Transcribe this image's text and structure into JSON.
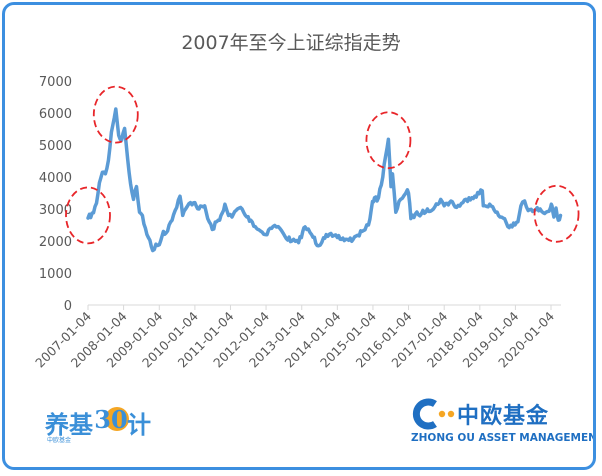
{
  "chart_data": {
    "type": "line",
    "title": "2007年至今上证综指走势",
    "xlabel": "",
    "ylabel": "",
    "ylim": [
      0,
      7000
    ],
    "yticks": [
      0,
      1000,
      2000,
      3000,
      4000,
      5000,
      6000,
      7000
    ],
    "x_tick_labels": [
      "2007-01-04",
      "2008-01-04",
      "2009-01-04",
      "2010-01-04",
      "2011-01-04",
      "2012-01-04",
      "2013-01-04",
      "2014-01-04",
      "2015-01-04",
      "2016-01-04",
      "2017-01-04",
      "2018-01-04",
      "2019-01-04",
      "2020-01-04"
    ],
    "grid": false,
    "legend": "none",
    "line_color": "#5b9bd5",
    "annotation_color": "#e8262a",
    "series": [
      {
        "x": [
          "2007-01-04",
          "2007-03-01",
          "2007-04-01",
          "2007-05-01",
          "2007-06-01",
          "2007-07-01",
          "2007-08-01",
          "2007-09-01",
          "2007-10-16",
          "2007-11-15",
          "2007-12-15",
          "2008-01-14",
          "2008-02-15",
          "2008-03-15",
          "2008-04-15",
          "2008-05-15",
          "2008-06-15",
          "2008-07-15",
          "2008-08-15",
          "2008-09-15",
          "2008-10-28",
          "2008-11-30",
          "2009-01-04",
          "2009-02-15",
          "2009-03-15",
          "2009-04-15",
          "2009-05-15",
          "2009-06-15",
          "2009-08-04",
          "2009-09-01",
          "2009-10-01",
          "2009-11-20",
          "2010-01-04",
          "2010-02-15",
          "2010-04-15",
          "2010-05-15",
          "2010-07-02",
          "2010-08-15",
          "2010-09-15",
          "2010-11-08",
          "2010-12-15",
          "2011-01-20",
          "2011-03-01",
          "2011-04-18",
          "2011-06-20",
          "2011-08-01",
          "2011-09-15",
          "2011-10-24",
          "2011-12-28",
          "2012-02-15",
          "2012-03-15",
          "2012-05-07",
          "2012-07-15",
          "2012-09-25",
          "2012-12-03",
          "2013-01-15",
          "2013-02-07",
          "2013-04-15",
          "2013-06-25",
          "2013-08-15",
          "2013-09-12",
          "2013-11-15",
          "2014-01-04",
          "2014-02-15",
          "2014-04-15",
          "2014-06-15",
          "2014-08-01",
          "2014-09-15",
          "2014-10-15",
          "2014-11-20",
          "2014-12-31",
          "2015-01-20",
          "2015-02-15",
          "2015-03-31",
          "2015-04-30",
          "2015-06-12",
          "2015-07-08",
          "2015-07-24",
          "2015-08-26",
          "2015-10-15",
          "2015-12-23",
          "2016-01-04",
          "2016-01-28",
          "2016-03-15",
          "2016-05-15",
          "2016-07-15",
          "2016-09-15",
          "2016-11-29",
          "2017-01-04",
          "2017-03-15",
          "2017-05-11",
          "2017-07-15",
          "2017-09-15",
          "2017-11-13",
          "2018-01-29",
          "2018-02-09",
          "2018-04-15",
          "2018-06-15",
          "2018-07-15",
          "2018-09-15",
          "2018-10-18",
          "2018-12-31",
          "2019-01-30",
          "2019-03-01",
          "2019-04-08",
          "2019-05-15",
          "2019-07-15",
          "2019-09-15",
          "2019-11-15",
          "2019-12-31",
          "2020-01-14",
          "2020-02-03",
          "2020-02-24",
          "2020-03-19",
          "2020-04-10"
        ],
        "y": [
          2715,
          2880,
          3180,
          3820,
          4150,
          4100,
          4520,
          5400,
          6124,
          5300,
          5150,
          5520,
          4550,
          3800,
          3300,
          3700,
          2900,
          2800,
          2400,
          2100,
          1700,
          1900,
          1880,
          2300,
          2250,
          2500,
          2650,
          2950,
          3400,
          2800,
          3000,
          3200,
          3200,
          3000,
          3100,
          2700,
          2360,
          2600,
          2650,
          3150,
          2800,
          2750,
          2950,
          3050,
          2750,
          2650,
          2450,
          2350,
          2200,
          2400,
          2450,
          2450,
          2150,
          2000,
          1950,
          2300,
          2440,
          2200,
          1850,
          2100,
          2200,
          2150,
          2110,
          2050,
          2050,
          2050,
          2180,
          2300,
          2350,
          2500,
          3234,
          3350,
          3250,
          3750,
          4400,
          5178,
          3700,
          4100,
          2900,
          3300,
          3600,
          3500,
          2700,
          2850,
          2850,
          3000,
          3000,
          3300,
          3100,
          3250,
          3050,
          3200,
          3350,
          3400,
          3570,
          3100,
          3150,
          2900,
          2800,
          2700,
          2450,
          2500,
          2600,
          3100,
          3250,
          2950,
          2950,
          3000,
          2900,
          3050,
          3100,
          2750,
          3030,
          2650,
          2800
        ]
      }
    ],
    "highlight_circles": [
      {
        "date": "2007-01-04",
        "value": 2800
      },
      {
        "date": "2007-10-16",
        "value": 5950
      },
      {
        "date": "2015-06-12",
        "value": 5150
      },
      {
        "date": "2020-03-01",
        "value": 2850
      }
    ]
  },
  "brand_left": {
    "name": "养基",
    "number": "30",
    "tail": "计",
    "sub": "中欧基金"
  },
  "brand_right": {
    "name": "中欧基金",
    "sub": "ZHONG OU ASSET MANAGEMENT",
    "logo_color": "#1f6fc2",
    "dot_color": "#f5a623"
  }
}
